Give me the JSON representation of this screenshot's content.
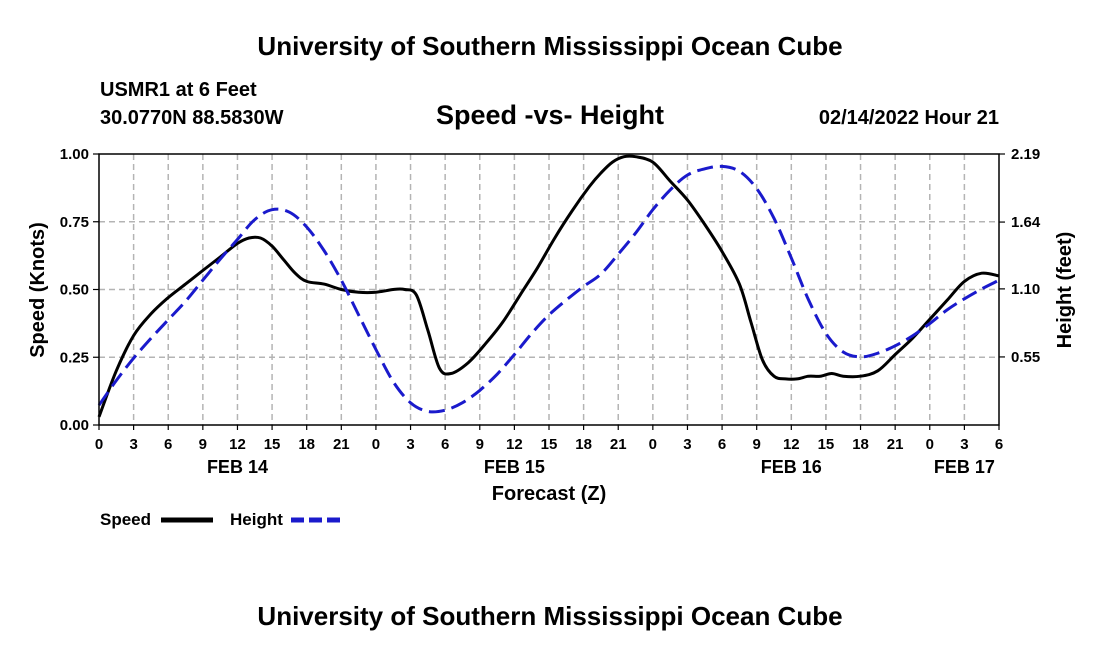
{
  "page": {
    "title": "University of Southern Mississippi Ocean Cube",
    "footer_title": "University of Southern Mississippi Ocean Cube",
    "station": "USMR1 at 6 Feet",
    "location": "30.0770N  88.5830W",
    "timestamp": "02/14/2022 Hour 21"
  },
  "colors": {
    "speed": "#000000",
    "height": "#1a1acc",
    "grid": "#b4b4b4",
    "background": "#ffffff"
  },
  "chart_data": {
    "type": "line",
    "title": "Speed -vs- Height",
    "xlabel": "Forecast (Z)",
    "ylabel": "Speed (Knots)",
    "y2label": "Height (feet)",
    "xlim": [
      0,
      78
    ],
    "ylim": [
      0,
      1.0
    ],
    "y2lim": [
      0,
      2.19
    ],
    "x_ticks": [
      0,
      3,
      6,
      9,
      12,
      15,
      18,
      21,
      24,
      27,
      30,
      33,
      36,
      39,
      42,
      45,
      48,
      51,
      54,
      57,
      60,
      63,
      66,
      69,
      72,
      75,
      78
    ],
    "x_tick_labels": [
      "0",
      "3",
      "6",
      "9",
      "12",
      "15",
      "18",
      "21",
      "0",
      "3",
      "6",
      "9",
      "12",
      "15",
      "18",
      "21",
      "0",
      "3",
      "6",
      "9",
      "12",
      "15",
      "18",
      "21",
      "0",
      "3",
      "6"
    ],
    "y_ticks": [
      0,
      0.25,
      0.5,
      0.75,
      1.0
    ],
    "y_tick_labels": [
      "0.00",
      "0.25",
      "0.50",
      "0.75",
      "1.00"
    ],
    "y2_ticks": [
      0.55,
      1.1,
      1.64,
      2.19
    ],
    "y2_tick_labels": [
      "0.55",
      "1.10",
      "1.64",
      "2.19"
    ],
    "date_labels": [
      {
        "label": "FEB 14",
        "x": 12
      },
      {
        "label": "FEB 15",
        "x": 36
      },
      {
        "label": "FEB 16",
        "x": 60
      },
      {
        "label": "FEB 17",
        "x": 75
      }
    ],
    "grid": true,
    "legend": "bottom-left",
    "series": [
      {
        "name": "Speed",
        "axis": "left",
        "style": "solid",
        "x": [
          0,
          1.5,
          3,
          4.5,
          6,
          7.5,
          9,
          10.5,
          12,
          13,
          14,
          15,
          16,
          17,
          18,
          19.5,
          21,
          22.5,
          24,
          25.5,
          26.5,
          27.5,
          28.5,
          29.5,
          30.5,
          32,
          33.5,
          35,
          36.5,
          38,
          39.5,
          41,
          42.5,
          43.5,
          44.5,
          45.5,
          46.5,
          48,
          49.5,
          51,
          52.5,
          54,
          55.5,
          56.5,
          57.5,
          58.5,
          59.5,
          60.5,
          61.5,
          62.5,
          63.5,
          64.5,
          66,
          67.5,
          69,
          70.5,
          72,
          73.5,
          75,
          76.5,
          78
        ],
        "values": [
          0.03,
          0.2,
          0.33,
          0.41,
          0.47,
          0.52,
          0.57,
          0.62,
          0.67,
          0.69,
          0.69,
          0.66,
          0.61,
          0.56,
          0.53,
          0.52,
          0.5,
          0.49,
          0.49,
          0.5,
          0.5,
          0.48,
          0.35,
          0.21,
          0.19,
          0.23,
          0.3,
          0.38,
          0.48,
          0.58,
          0.69,
          0.79,
          0.88,
          0.93,
          0.97,
          0.99,
          0.99,
          0.97,
          0.9,
          0.83,
          0.74,
          0.64,
          0.52,
          0.38,
          0.24,
          0.18,
          0.17,
          0.17,
          0.18,
          0.18,
          0.19,
          0.18,
          0.18,
          0.2,
          0.26,
          0.32,
          0.39,
          0.46,
          0.53,
          0.56,
          0.55
        ]
      },
      {
        "name": "Height",
        "axis": "right",
        "style": "dashed",
        "x": [
          0,
          1.5,
          3,
          4.5,
          6,
          7.5,
          9,
          10.5,
          12,
          13.5,
          15,
          16.5,
          18,
          19.5,
          21,
          22.5,
          24,
          25.5,
          27,
          28.5,
          30,
          31.5,
          33,
          34.5,
          36,
          37.5,
          39,
          40.5,
          42,
          43.5,
          45,
          46.5,
          48,
          49.5,
          51,
          52.5,
          54,
          55.5,
          57,
          58.5,
          60,
          61.5,
          63,
          64.5,
          66,
          67.5,
          69,
          70.5,
          72,
          73.5,
          75,
          76.5,
          78
        ],
        "values": [
          0.16,
          0.36,
          0.54,
          0.7,
          0.85,
          1.0,
          1.17,
          1.34,
          1.5,
          1.66,
          1.74,
          1.72,
          1.6,
          1.41,
          1.17,
          0.89,
          0.61,
          0.35,
          0.18,
          0.11,
          0.12,
          0.18,
          0.28,
          0.41,
          0.57,
          0.74,
          0.89,
          1.01,
          1.12,
          1.22,
          1.38,
          1.55,
          1.74,
          1.9,
          2.02,
          2.07,
          2.09,
          2.05,
          1.91,
          1.67,
          1.35,
          1.01,
          0.74,
          0.59,
          0.55,
          0.58,
          0.64,
          0.72,
          0.82,
          0.93,
          1.02,
          1.1,
          1.17
        ]
      }
    ]
  }
}
